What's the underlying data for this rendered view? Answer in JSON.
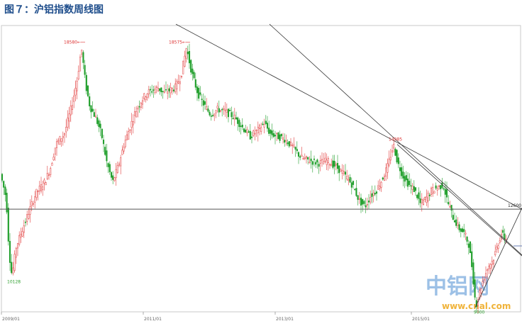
{
  "title": "图７：沪铝指数周线图",
  "chart_data": {
    "type": "candlestick",
    "x_ticks": [
      "2009/01",
      "2011/01",
      "2013/01",
      "2015/01"
    ],
    "ylim": [
      8800,
      19400
    ],
    "horizontal_level": 12600,
    "annotations": [
      {
        "label": "18580",
        "value": 18580,
        "kind": "peak"
      },
      {
        "label": "18575",
        "value": 18575,
        "kind": "peak"
      },
      {
        "label": "14985",
        "value": 14985,
        "kind": "peak"
      },
      {
        "label": "10128",
        "value": 10128,
        "kind": "trough"
      },
      {
        "label": "9000",
        "value": 9000,
        "kind": "trough"
      },
      {
        "label": "12600",
        "value": 12600,
        "kind": "level"
      }
    ],
    "path_points": [
      [
        0,
        13900
      ],
      [
        8,
        13000
      ],
      [
        12,
        11000
      ],
      [
        16,
        10128
      ],
      [
        22,
        11200
      ],
      [
        30,
        11800
      ],
      [
        40,
        12500
      ],
      [
        50,
        13200
      ],
      [
        62,
        13600
      ],
      [
        70,
        14100
      ],
      [
        78,
        15000
      ],
      [
        90,
        15400
      ],
      [
        100,
        16400
      ],
      [
        108,
        17400
      ],
      [
        114,
        18580
      ],
      [
        120,
        17200
      ],
      [
        126,
        16400
      ],
      [
        134,
        16000
      ],
      [
        142,
        15400
      ],
      [
        150,
        14300
      ],
      [
        158,
        13600
      ],
      [
        166,
        14200
      ],
      [
        174,
        15000
      ],
      [
        182,
        15600
      ],
      [
        190,
        16200
      ],
      [
        198,
        16600
      ],
      [
        206,
        16900
      ],
      [
        214,
        17000
      ],
      [
        222,
        17100
      ],
      [
        230,
        16900
      ],
      [
        238,
        17000
      ],
      [
        246,
        17100
      ],
      [
        254,
        17500
      ],
      [
        262,
        18575
      ],
      [
        270,
        17600
      ],
      [
        278,
        16900
      ],
      [
        286,
        16500
      ],
      [
        296,
        16100
      ],
      [
        306,
        16300
      ],
      [
        318,
        16200
      ],
      [
        330,
        16000
      ],
      [
        342,
        15600
      ],
      [
        352,
        15300
      ],
      [
        362,
        15500
      ],
      [
        372,
        15800
      ],
      [
        380,
        15400
      ],
      [
        390,
        15300
      ],
      [
        400,
        15200
      ],
      [
        412,
        14900
      ],
      [
        424,
        14500
      ],
      [
        436,
        14400
      ],
      [
        448,
        14300
      ],
      [
        460,
        14400
      ],
      [
        472,
        14200
      ],
      [
        484,
        13900
      ],
      [
        496,
        13500
      ],
      [
        506,
        12900
      ],
      [
        514,
        12700
      ],
      [
        522,
        13100
      ],
      [
        530,
        13300
      ],
      [
        538,
        13700
      ],
      [
        546,
        14200
      ],
      [
        554,
        14985
      ],
      [
        560,
        14300
      ],
      [
        568,
        13800
      ],
      [
        576,
        13500
      ],
      [
        584,
        13300
      ],
      [
        592,
        12800
      ],
      [
        600,
        13000
      ],
      [
        608,
        13300
      ],
      [
        616,
        13400
      ],
      [
        624,
        13500
      ],
      [
        630,
        12900
      ],
      [
        638,
        12300
      ],
      [
        646,
        11900
      ],
      [
        654,
        11700
      ],
      [
        660,
        11300
      ],
      [
        665,
        10400
      ],
      [
        670,
        9000
      ],
      [
        676,
        9600
      ],
      [
        682,
        10100
      ],
      [
        688,
        10500
      ],
      [
        694,
        10700
      ],
      [
        700,
        11200
      ],
      [
        706,
        11700
      ],
      [
        712,
        11500
      ]
    ]
  },
  "watermark": {
    "main": "中铝网",
    "url": "www.cnal.com"
  },
  "colors": {
    "up": "#e23d3d",
    "down": "#1f9e2a",
    "line": "#333333",
    "grid": "#d0d0d0",
    "title": "#1f4e8c"
  }
}
